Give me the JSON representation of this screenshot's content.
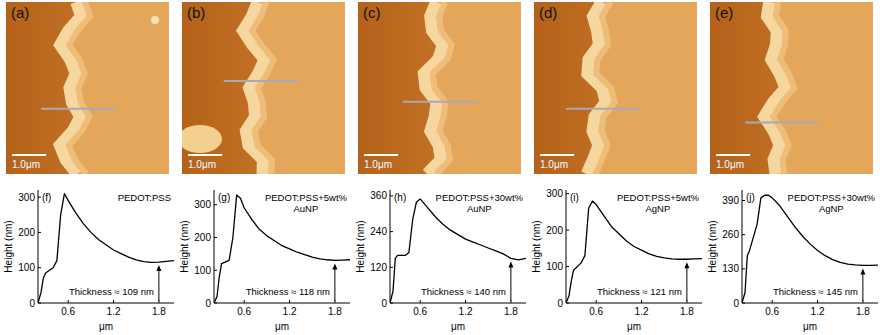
{
  "images": [
    {
      "panel_label": "(a)",
      "scale_bar": "1.0μm"
    },
    {
      "panel_label": "(b)",
      "scale_bar": "1.0μm"
    },
    {
      "panel_label": "(c)",
      "scale_bar": "1.0μm"
    },
    {
      "panel_label": "(d)",
      "scale_bar": "1.0μm"
    },
    {
      "panel_label": "(e)",
      "scale_bar": "1.0μm"
    }
  ],
  "chart_data": [
    {
      "type": "line",
      "panel_label": "(f)",
      "title": "PEDOT:PSS",
      "annotation": "Thickness ≈ 109 nm",
      "x_label": "μm",
      "y_label": "Height (nm)",
      "x": [
        0.2,
        0.24,
        0.27,
        0.3,
        0.4,
        0.45,
        0.5,
        0.55,
        0.6,
        0.7,
        0.8,
        0.9,
        1.0,
        1.1,
        1.2,
        1.3,
        1.4,
        1.5,
        1.6,
        1.7,
        1.8,
        1.9,
        2.0
      ],
      "series": [
        {
          "color": "#000000",
          "values": [
            0,
            30,
            70,
            85,
            100,
            120,
            250,
            310,
            290,
            255,
            225,
            200,
            180,
            165,
            150,
            140,
            130,
            122,
            117,
            115,
            116,
            118,
            120
          ]
        }
      ],
      "xlim": [
        0.2,
        2.0
      ],
      "xticks": [
        0.6,
        1.2,
        1.8
      ],
      "ylim": [
        0,
        320
      ],
      "yticks": [
        0,
        100,
        200,
        300
      ]
    },
    {
      "type": "line",
      "panel_label": "(g)",
      "title": "PEDOT:PSS+5wt% AuNP",
      "annotation": "Thickness ≈ 118 nm",
      "x_label": "μm",
      "y_label": "Height (nm)",
      "x": [
        0.2,
        0.24,
        0.27,
        0.3,
        0.4,
        0.45,
        0.5,
        0.55,
        0.6,
        0.7,
        0.8,
        0.9,
        1.0,
        1.1,
        1.2,
        1.3,
        1.4,
        1.5,
        1.6,
        1.7,
        1.8,
        1.9,
        2.0
      ],
      "series": [
        {
          "color": "#000000",
          "values": [
            0,
            20,
            80,
            120,
            130,
            200,
            330,
            320,
            290,
            255,
            225,
            205,
            190,
            175,
            165,
            155,
            148,
            140,
            135,
            132,
            130,
            131,
            132
          ]
        }
      ],
      "xlim": [
        0.2,
        2.0
      ],
      "xticks": [
        0.6,
        1.2,
        1.8
      ],
      "ylim": [
        0,
        345
      ],
      "yticks": [
        0,
        100,
        200,
        300
      ]
    },
    {
      "type": "line",
      "panel_label": "(h)",
      "title": "PEDOT:PSS+30wt% AuNP",
      "annotation": "Thickness ≈ 140 nm",
      "x_label": "μm",
      "y_label": "Height (nm)",
      "x": [
        0.2,
        0.24,
        0.27,
        0.3,
        0.4,
        0.45,
        0.5,
        0.55,
        0.6,
        0.7,
        0.8,
        0.9,
        1.0,
        1.1,
        1.2,
        1.3,
        1.4,
        1.5,
        1.6,
        1.7,
        1.8,
        1.9,
        2.0
      ],
      "series": [
        {
          "color": "#000000",
          "values": [
            0,
            40,
            150,
            160,
            160,
            170,
            280,
            340,
            350,
            320,
            290,
            265,
            245,
            230,
            215,
            205,
            195,
            185,
            175,
            165,
            150,
            145,
            150
          ]
        }
      ],
      "xlim": [
        0.2,
        2.0
      ],
      "xticks": [
        0.6,
        1.2,
        1.8
      ],
      "ylim": [
        0,
        380
      ],
      "yticks": [
        0,
        120,
        240,
        360
      ]
    },
    {
      "type": "line",
      "panel_label": "(i)",
      "title": "PEDOT:PSS+5wt% AgNP",
      "annotation": "Thickness ≈ 121 nm",
      "x_label": "μm",
      "y_label": "Height (nm)",
      "x": [
        0.2,
        0.24,
        0.27,
        0.3,
        0.4,
        0.45,
        0.5,
        0.55,
        0.6,
        0.7,
        0.8,
        0.9,
        1.0,
        1.1,
        1.2,
        1.3,
        1.4,
        1.5,
        1.6,
        1.7,
        1.8,
        1.9,
        2.0
      ],
      "series": [
        {
          "color": "#000000",
          "values": [
            0,
            20,
            60,
            90,
            110,
            130,
            260,
            280,
            270,
            240,
            210,
            190,
            170,
            155,
            145,
            135,
            128,
            124,
            121,
            120,
            120,
            121,
            122
          ]
        }
      ],
      "xlim": [
        0.2,
        2.0
      ],
      "xticks": [
        0.6,
        1.2,
        1.8
      ],
      "ylim": [
        0,
        310
      ],
      "yticks": [
        0,
        100,
        200,
        300
      ]
    },
    {
      "type": "line",
      "panel_label": "(j)",
      "title": "PEDOT:PSS+30wt% AgNP",
      "annotation": "Thickness ≈ 145 nm",
      "x_label": "μm",
      "y_label": "Height (nm)",
      "x": [
        0.2,
        0.24,
        0.27,
        0.3,
        0.4,
        0.45,
        0.5,
        0.55,
        0.6,
        0.7,
        0.8,
        0.9,
        1.0,
        1.1,
        1.2,
        1.3,
        1.4,
        1.5,
        1.6,
        1.7,
        1.8,
        1.9,
        2.0
      ],
      "series": [
        {
          "color": "#000000",
          "values": [
            0,
            40,
            180,
            200,
            300,
            400,
            410,
            410,
            400,
            370,
            330,
            290,
            255,
            225,
            200,
            180,
            165,
            155,
            148,
            145,
            143,
            143,
            144
          ]
        }
      ],
      "xlim": [
        0.2,
        2.0
      ],
      "xticks": [
        0.6,
        1.2,
        1.8
      ],
      "ylim": [
        0,
        430
      ],
      "yticks": [
        0,
        130,
        260,
        390
      ]
    }
  ]
}
